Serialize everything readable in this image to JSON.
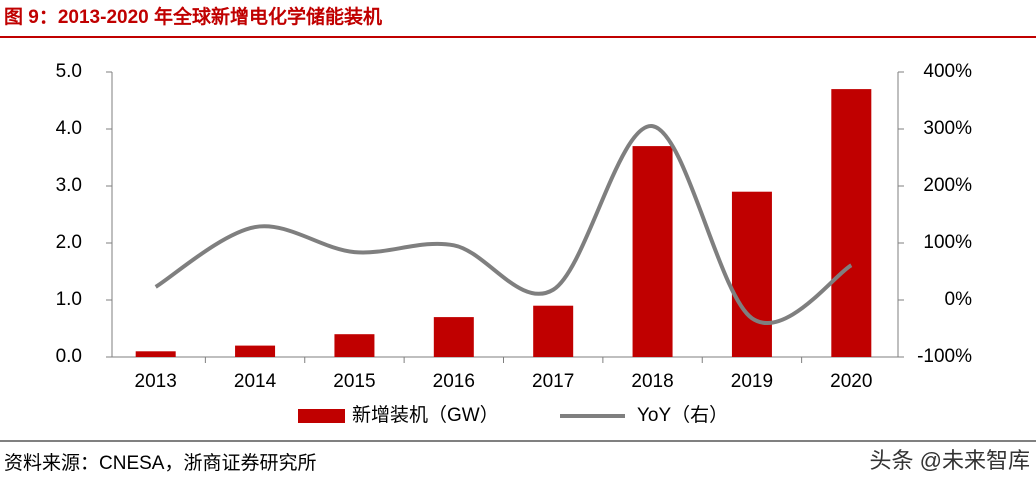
{
  "chart_data": {
    "type": "bar",
    "title": "图 9：2013-2020 年全球新增电化学储能装机",
    "categories": [
      "2013",
      "2014",
      "2015",
      "2016",
      "2017",
      "2018",
      "2019",
      "2020"
    ],
    "series": [
      {
        "name": "新增装机（GW）",
        "type": "bar",
        "color": "#c00000",
        "values": [
          0.1,
          0.2,
          0.4,
          0.7,
          0.9,
          3.7,
          2.9,
          4.7
        ]
      },
      {
        "name": "YoY（右）",
        "type": "line",
        "axis": "y2",
        "color": "#7f7f7f",
        "values": [
          23,
          128,
          84,
          96,
          18,
          305,
          -32,
          61
        ]
      }
    ],
    "ylim": [
      0,
      5
    ],
    "yticks": [
      {
        "value": 0,
        "label": "0.0"
      },
      {
        "value": 1,
        "label": "1.0"
      },
      {
        "value": 2,
        "label": "2.0"
      },
      {
        "value": 3,
        "label": "3.0"
      },
      {
        "value": 4,
        "label": "4.0"
      },
      {
        "value": 5,
        "label": "5.0"
      }
    ],
    "y2lim": [
      -100,
      400
    ],
    "y2ticks": [
      {
        "value": -100,
        "label": "-100%"
      },
      {
        "value": 0,
        "label": "0%"
      },
      {
        "value": 100,
        "label": "100%"
      },
      {
        "value": 200,
        "label": "200%"
      },
      {
        "value": 300,
        "label": "300%"
      },
      {
        "value": 400,
        "label": "400%"
      }
    ],
    "grid": false,
    "legend": "bottom",
    "source": "资料来源：CNESA，浙商证券研究所",
    "watermark": "头条 @未来智库"
  }
}
